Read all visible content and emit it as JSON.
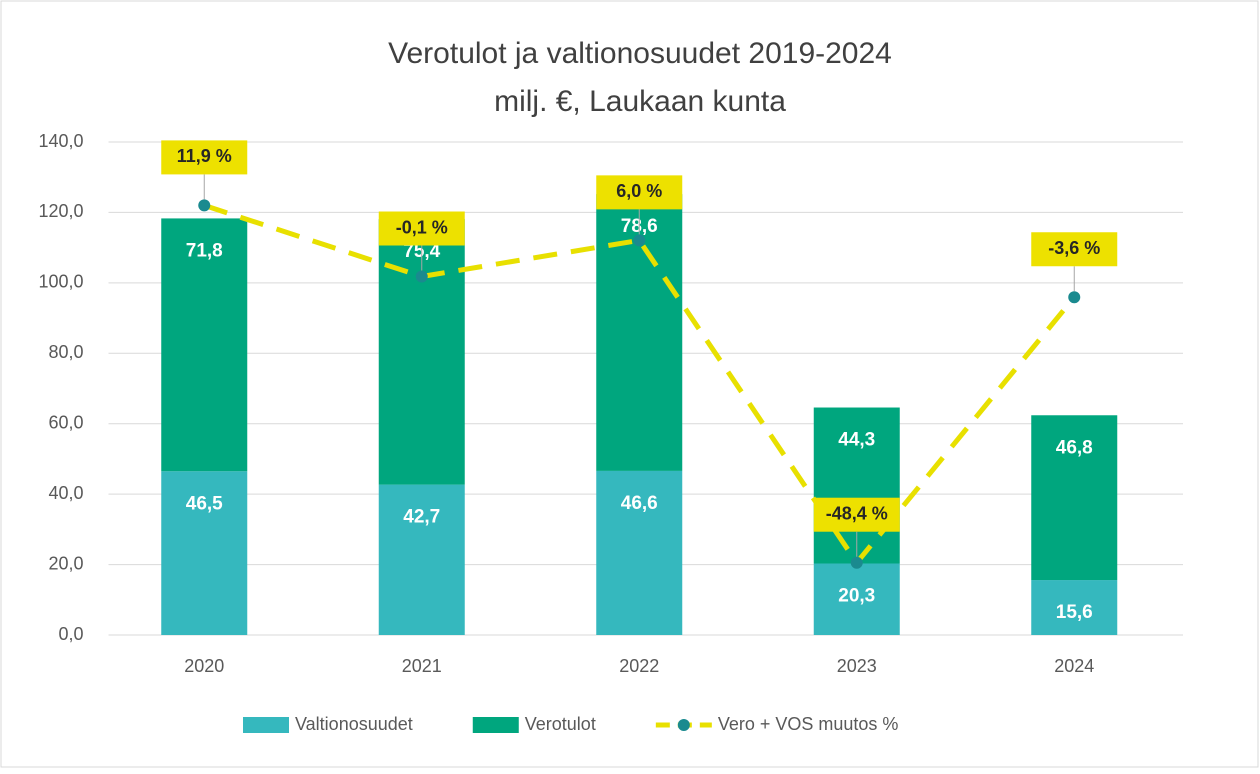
{
  "chart_data": {
    "type": "bar",
    "stacked": true,
    "title": "Verotulot ja valtionosuudet 2019-2024",
    "subtitle": "milj. €, Laukaan kunta",
    "categories": [
      "2020",
      "2021",
      "2022",
      "2023",
      "2024"
    ],
    "series": [
      {
        "name": "Valtionosuudet",
        "color": "#35b8be",
        "values": [
          46.5,
          42.7,
          46.6,
          20.3,
          15.6
        ],
        "value_labels": [
          "46,5",
          "42,7",
          "46,6",
          "20,3",
          "15,6"
        ]
      },
      {
        "name": "Verotulot",
        "color": "#00a67e",
        "values": [
          71.8,
          75.4,
          78.6,
          44.3,
          46.8
        ],
        "value_labels": [
          "71,8",
          "75,4",
          "78,6",
          "44,3",
          "46,8"
        ]
      },
      {
        "name": "Vero + VOS muutos %",
        "type": "line",
        "axis": "y2",
        "color": "#e8e000",
        "marker_color": "#1a8a8f",
        "dashed": true,
        "values": [
          11.9,
          -0.1,
          6.0,
          -48.4,
          -3.6
        ],
        "value_labels": [
          "11,9 %",
          "-0,1 %",
          "6,0 %",
          "-48,4 %",
          "-3,6 %"
        ],
        "label_color": "#ede100"
      }
    ],
    "ylim": [
      0,
      140
    ],
    "yticks": [
      {
        "value": 0,
        "label": "0,0"
      },
      {
        "value": 20,
        "label": "20,0"
      },
      {
        "value": 40,
        "label": "40,0"
      },
      {
        "value": 60,
        "label": "60,0"
      },
      {
        "value": 80,
        "label": "80,0"
      },
      {
        "value": 100,
        "label": "100,0"
      },
      {
        "value": 120,
        "label": "120,0"
      },
      {
        "value": 140,
        "label": "140,0"
      }
    ],
    "y2lim": [
      -60.6,
      22.6
    ],
    "grid": true,
    "legend": "bottom"
  }
}
